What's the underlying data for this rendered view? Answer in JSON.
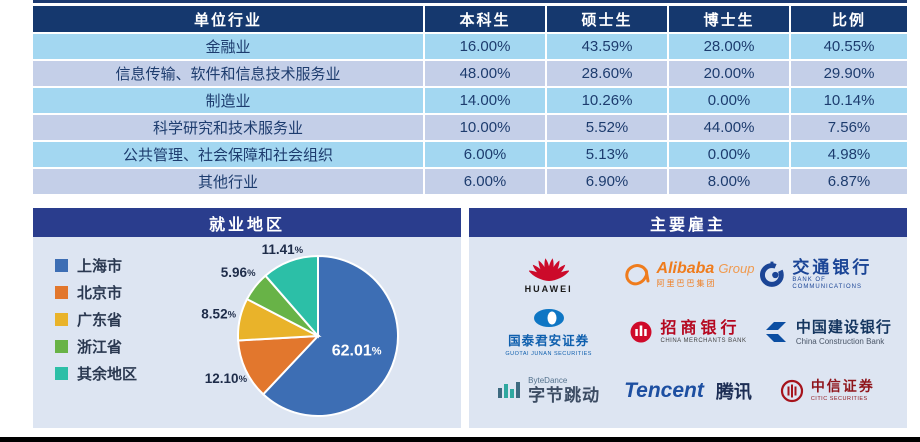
{
  "industry_table": {
    "headers": [
      "单位行业",
      "本科生",
      "硕士生",
      "博士生",
      "比例"
    ],
    "rows": [
      [
        "金融业",
        "16.00%",
        "43.59%",
        "28.00%",
        "40.55%"
      ],
      [
        "信息传输、软件和信息技术服务业",
        "48.00%",
        "28.60%",
        "20.00%",
        "29.90%"
      ],
      [
        "制造业",
        "14.00%",
        "10.26%",
        "0.00%",
        "10.14%"
      ],
      [
        "科学研究和技术服务业",
        "10.00%",
        "5.52%",
        "44.00%",
        "7.56%"
      ],
      [
        "公共管理、社会保障和社会组织",
        "6.00%",
        "5.13%",
        "0.00%",
        "4.98%"
      ],
      [
        "其他行业",
        "6.00%",
        "6.90%",
        "8.00%",
        "6.87%"
      ]
    ],
    "header_bg": "#15386e",
    "row_colors": [
      "#a3d7f1",
      "#c4cfe8"
    ],
    "cell_text_color": "#1d3c6e"
  },
  "chart_data": {
    "type": "pie",
    "title": "就业地区",
    "labels": [
      "上海市",
      "北京市",
      "广东省",
      "浙江省",
      "其余地区"
    ],
    "values": [
      62.01,
      12.1,
      8.52,
      5.96,
      11.41
    ],
    "value_labels": [
      "62.01%",
      "12.10%",
      "8.52%",
      "5.96%",
      "11.41%"
    ],
    "colors": [
      "#3d6eb4",
      "#e2772d",
      "#e9b32a",
      "#68b347",
      "#2cbfa7"
    ],
    "start_angle_deg": 0,
    "direction": "clockwise",
    "legend_position": "left"
  },
  "employers": {
    "title": "主要雇主",
    "items": [
      {
        "id": "huawei",
        "name": "HUAWEI",
        "logo_color": "#cc0a2a"
      },
      {
        "id": "alibaba",
        "name": "Alibaba",
        "suffix": "Group",
        "sub": "阿里巴巴集团",
        "logo_color": "#ef7c1d"
      },
      {
        "id": "bocom",
        "name": "交通银行",
        "sub": "BANK OF COMMUNICATIONS",
        "logo_color": "#1b4596"
      },
      {
        "id": "guotai-junan",
        "name": "国泰君安证券",
        "sub": "GUOTAI JUNAN SECURITIES",
        "logo_color": "#0e76c4"
      },
      {
        "id": "cmb",
        "name": "招商银行",
        "sub": "CHINA MERCHANTS BANK",
        "logo_color": "#cf0a2a"
      },
      {
        "id": "ccb",
        "name": "中国建设银行",
        "sub": "China Construction Bank",
        "logo_color": "#0b4ea2"
      },
      {
        "id": "bytedance",
        "name": "字节跳动",
        "sub": "ByteDance",
        "logo_color": "#2fa8a0"
      },
      {
        "id": "tencent",
        "name": "Tencent",
        "sub": "腾讯",
        "logo_color": "#1d4fa1"
      },
      {
        "id": "citic",
        "name": "中信证券",
        "sub": "CITIC SECURITIES",
        "logo_color": "#a6131c"
      }
    ]
  },
  "colors": {
    "table_header_bg": "#15386e",
    "row_alt_a": "#a3d7f1",
    "row_alt_b": "#c4cfe8",
    "cell_text": "#1d3c6e",
    "panel_bg": "#dde5f2",
    "panel_header_bg": "#2a3d8d",
    "top_line": "#1c3a70",
    "bottom_bar": "#000000",
    "pie_inside_label": "#ffffff",
    "pie_outside_label": "#1e2c49"
  }
}
